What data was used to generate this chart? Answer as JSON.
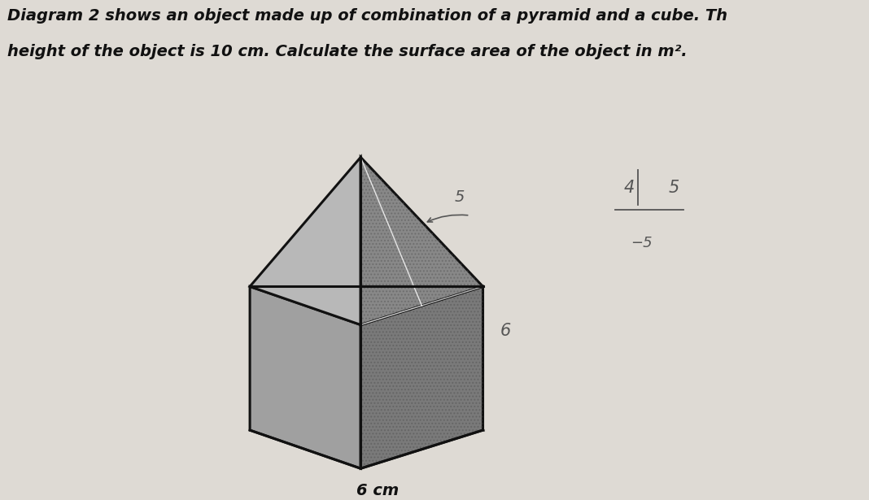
{
  "title_line1": "Diagram 2 shows an object made up of combination of a pyramid and a cube. Th",
  "title_line2": "height of the object is 10 cm. Calculate the surface area of the object in m².",
  "label_bottom": "6 cm",
  "label_5": "5",
  "label_6": "6",
  "bg_color": "#dedad4",
  "face_left_cube": "#a0a0a0",
  "face_right_cube": "#7a7a7a",
  "face_left_pyramid": "#b8b8b8",
  "face_right_pyramid": "#888888",
  "edge_color": "#111111",
  "text_color": "#111111",
  "handwritten_color": "#555555"
}
